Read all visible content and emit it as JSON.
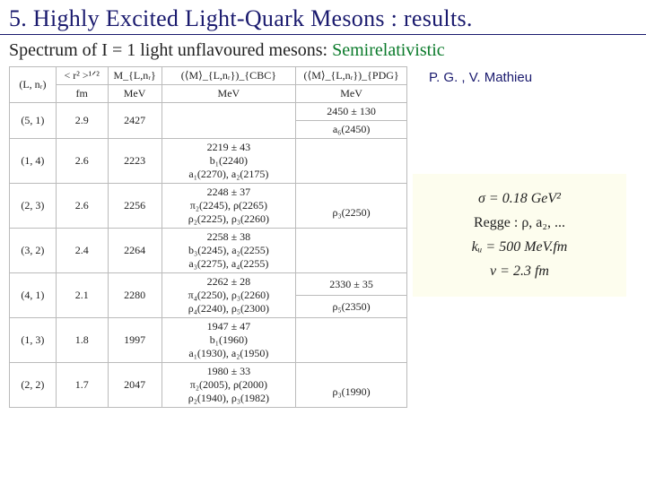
{
  "title": "5. Highly Excited Light-Quark Mesons : results.",
  "subtitle_prefix": "Spectrum of  I = 1 light unflavoured mesons:",
  "subtitle_highlight": " Semirelativistic",
  "authors": "P. G. , V. Mathieu",
  "table": {
    "headers": {
      "ln": "(L, nᵣ)",
      "r_top": "< r² >¹ᐟ²",
      "r_unit": "fm",
      "m_top": "M_{L,nᵣ}",
      "m_unit": "MeV",
      "cbc_top": "(⟨M⟩_{L,nᵣ})_{CBC}",
      "cbc_unit": "MeV",
      "pdg_top": "(⟨M⟩_{L,nᵣ})_{PDG}",
      "pdg_unit": "MeV"
    },
    "rows": [
      {
        "ln": "(5, 1)",
        "r": "2.9",
        "m": "2427",
        "cbc_lines": [
          ""
        ],
        "cbc_sub": "",
        "pdg_top": "2450 ± 130",
        "pdg_sub": "a₆(2450)"
      },
      {
        "ln": "(1, 4)",
        "r": "2.6",
        "m": "2223",
        "cbc_lines": [
          "2219 ± 43",
          "b₁(2240)",
          "a₁(2270), a₂(2175)"
        ],
        "pdg_top": "",
        "pdg_sub": ""
      },
      {
        "ln": "(2, 3)",
        "r": "2.6",
        "m": "2256",
        "cbc_lines": [
          "2248 ± 37",
          "π₂(2245), ρ(2265)",
          "ρ₂(2225), ρ₃(2260)"
        ],
        "pdg_top": "",
        "pdg_sub": "ρ₃(2250)"
      },
      {
        "ln": "(3, 2)",
        "r": "2.4",
        "m": "2264",
        "cbc_lines": [
          "2258 ± 38",
          "b₃(2245), a₂(2255)",
          "a₃(2275), a₄(2255)"
        ],
        "pdg_top": "",
        "pdg_sub": ""
      },
      {
        "ln": "(4, 1)",
        "r": "2.1",
        "m": "2280",
        "cbc_lines": [
          "2262 ± 28",
          "π₄(2250), ρ₃(2260)",
          "ρ₄(2240), ρ₅(2300)"
        ],
        "pdg_top": "2330 ± 35",
        "pdg_sub": "ρ₅(2350)"
      },
      {
        "ln": "(1, 3)",
        "r": "1.8",
        "m": "1997",
        "cbc_lines": [
          "1947 ± 47",
          "b₁(1960)",
          "a₁(1930), a₂(1950)"
        ],
        "pdg_top": "",
        "pdg_sub": ""
      },
      {
        "ln": "(2, 2)",
        "r": "1.7",
        "m": "2047",
        "cbc_lines": [
          "1980 ± 33",
          "π₂(2005), ρ(2000)",
          "ρ₂(1940), ρ₃(1982)"
        ],
        "pdg_top": "",
        "pdg_sub": "ρ₃(1990)"
      }
    ]
  },
  "params_box": {
    "background_color": "#fdfdee",
    "lines": {
      "sigma": "σ = 0.18 GeV²",
      "regge": "Regge : ρ, a₂, ...",
      "ku": "kᵤ = 500 MeV.fm",
      "nu": "ν = 2.3 fm"
    }
  }
}
